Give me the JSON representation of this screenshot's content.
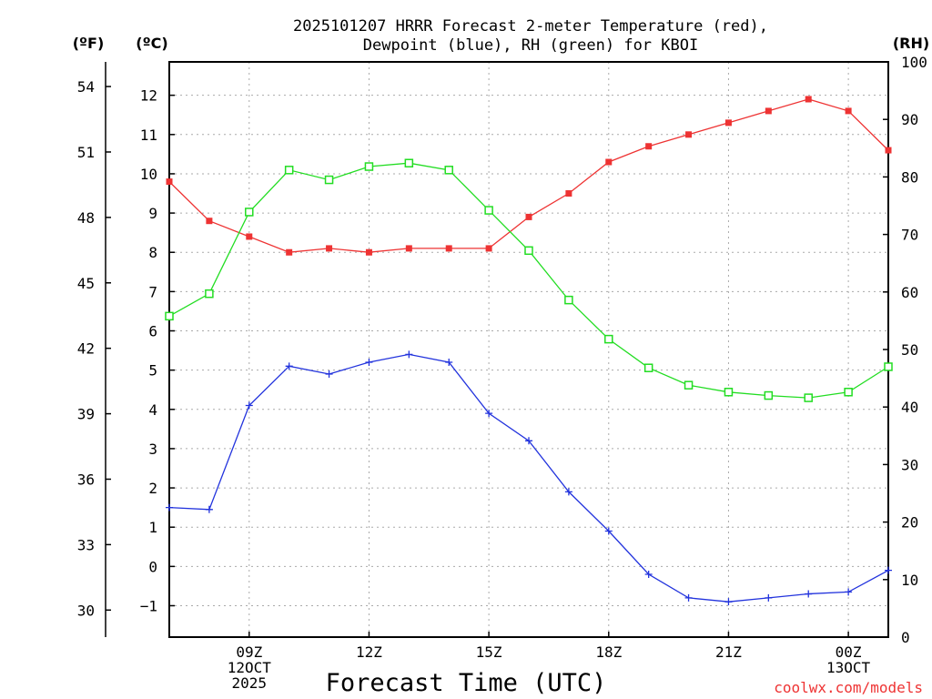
{
  "chart_data": {
    "type": "line",
    "title_lines": [
      "2025101207 HRRR Forecast 2-meter Temperature (red),",
      "Dewpoint (blue), RH (green) for KBOI"
    ],
    "xlabel": "Forecast Time (UTC)",
    "credit": "coolwx.com/models",
    "units": {
      "fahrenheit": "(ºF)",
      "celsius": "(ºC)",
      "rh": "(RH)"
    },
    "x_hours": [
      7,
      8,
      9,
      10,
      11,
      12,
      13,
      14,
      15,
      16,
      17,
      18,
      19,
      20,
      21,
      22,
      23,
      24,
      25
    ],
    "xlim": [
      7,
      25
    ],
    "x_ticks": [
      {
        "hour": 9,
        "lines": [
          "09Z",
          "12OCT",
          "2025"
        ]
      },
      {
        "hour": 12,
        "lines": [
          "12Z"
        ]
      },
      {
        "hour": 15,
        "lines": [
          "15Z"
        ]
      },
      {
        "hour": 18,
        "lines": [
          "18Z"
        ]
      },
      {
        "hour": 21,
        "lines": [
          "21Z"
        ]
      },
      {
        "hour": 24,
        "lines": [
          "00Z",
          "13OCT"
        ]
      }
    ],
    "celsius_axis": {
      "ylim": [
        -1.8,
        12.85
      ],
      "ticks": [
        -1,
        0,
        1,
        2,
        3,
        4,
        5,
        6,
        7,
        8,
        9,
        10,
        11,
        12
      ],
      "tick_labels": [
        "−1",
        "0",
        "1",
        "2",
        "3",
        "4",
        "5",
        "6",
        "7",
        "8",
        "9",
        "10",
        "11",
        "12"
      ]
    },
    "fahrenheit_axis": {
      "ticks": [
        30,
        33,
        36,
        39,
        42,
        45,
        48,
        51,
        54
      ],
      "tick_labels": [
        "30",
        "33",
        "36",
        "39",
        "42",
        "45",
        "48",
        "51",
        "54"
      ]
    },
    "rh_axis": {
      "ylim": [
        0,
        100
      ],
      "ticks": [
        0,
        10,
        20,
        30,
        40,
        50,
        60,
        70,
        80,
        90,
        100
      ],
      "tick_labels": [
        "0",
        "10",
        "20",
        "30",
        "40",
        "50",
        "60",
        "70",
        "80",
        "90",
        "100"
      ]
    },
    "series": [
      {
        "name": "Temperature",
        "axis": "celsius",
        "color": "#ee3333",
        "marker": "filled-square",
        "values": [
          9.8,
          8.8,
          8.4,
          8.0,
          8.1,
          8.0,
          8.1,
          8.1,
          8.1,
          8.9,
          9.5,
          10.3,
          10.7,
          11.0,
          11.3,
          11.6,
          11.9,
          11.6,
          10.6
        ]
      },
      {
        "name": "Dewpoint",
        "axis": "celsius",
        "color": "#2233dd",
        "marker": "plus",
        "values": [
          1.5,
          1.45,
          4.1,
          5.1,
          4.9,
          5.2,
          5.4,
          5.2,
          3.9,
          3.2,
          1.9,
          0.9,
          -0.2,
          -0.8,
          -0.9,
          -0.8,
          -0.7,
          -0.65,
          -0.1
        ]
      },
      {
        "name": "RH",
        "axis": "rh",
        "color": "#22dd22",
        "marker": "open-square",
        "values": [
          55.8,
          59.7,
          73.9,
          81.2,
          79.5,
          81.8,
          82.4,
          81.2,
          74.2,
          67.2,
          58.6,
          51.8,
          46.8,
          43.8,
          42.6,
          42.0,
          41.6,
          42.6,
          47.0
        ]
      }
    ]
  }
}
